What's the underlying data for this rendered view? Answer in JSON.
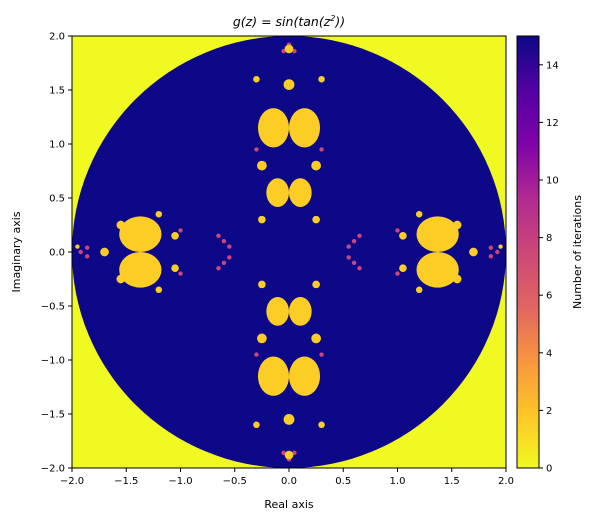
{
  "chart_data": {
    "type": "heatmap",
    "title": "g(z) = sin(tan(z²))",
    "title_parts": {
      "prefix": "g(z) = sin(tan(z",
      "exponent": "2",
      "suffix": "))"
    },
    "xlabel": "Real axis",
    "ylabel": "Imaginary axis",
    "xlim": [
      -2.0,
      2.0
    ],
    "ylim": [
      -2.0,
      2.0
    ],
    "x_ticks": [
      -2.0,
      -1.5,
      -1.0,
      -0.5,
      0.0,
      0.5,
      1.0,
      1.5,
      2.0
    ],
    "x_tick_labels": [
      "−2.0",
      "−1.5",
      "−1.0",
      "−0.5",
      "0.0",
      "0.5",
      "1.0",
      "1.5",
      "2.0"
    ],
    "y_ticks": [
      2.0,
      1.5,
      1.0,
      0.5,
      0.0,
      -0.5,
      -1.0,
      -1.5,
      -2.0
    ],
    "y_tick_labels": [
      "2.0",
      "1.5",
      "1.0",
      "0.5",
      "0.0",
      "−0.5",
      "−1.0",
      "−1.5",
      "−2.0"
    ],
    "colorbar": {
      "label": "Number of iterations",
      "range": [
        0,
        15
      ],
      "ticks": [
        0,
        2,
        4,
        6,
        8,
        10,
        12,
        14
      ],
      "tick_labels": [
        "0",
        "2",
        "4",
        "6",
        "8",
        "10",
        "12",
        "14"
      ],
      "colormap": "plasma_r"
    },
    "regions": {
      "escape_radius": 2.0,
      "outside_value": 0,
      "interior_value": 15,
      "bulb_value": 1,
      "main_bulbs": [
        {
          "x": 0.0,
          "y": 1.15
        },
        {
          "x": 0.0,
          "y": -1.15
        },
        {
          "x": 1.37,
          "y": 0.0
        },
        {
          "x": -1.37,
          "y": 0.0
        },
        {
          "x": 0.0,
          "y": 0.55
        },
        {
          "x": 0.0,
          "y": -0.55
        }
      ]
    },
    "colors": {
      "outside": "#f0f921",
      "interior": "#0d0887",
      "bulb": "#fcce25",
      "edge": "#cc4778"
    }
  }
}
